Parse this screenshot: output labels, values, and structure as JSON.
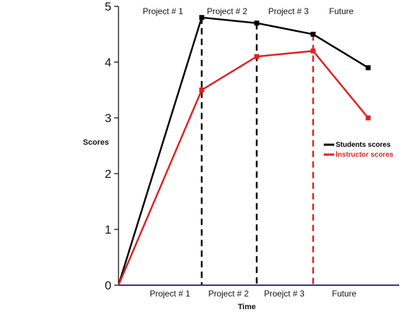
{
  "chart_data": {
    "type": "line",
    "xlabel": "Time",
    "ylabel": "Scores",
    "ylim": [
      0,
      5
    ],
    "y_ticks": [
      0,
      1,
      2,
      3,
      4,
      5
    ],
    "top_labels": [
      "Project # 1",
      "Project # 2",
      "Project # 3",
      "Future"
    ],
    "bottom_labels": [
      "Project # 1",
      "Project # 2",
      "Proejct # 3",
      "Future"
    ],
    "x": [
      0,
      1,
      2,
      3,
      4
    ],
    "series": [
      {
        "name": "Students scores",
        "color": "#000000",
        "values": [
          0,
          4.8,
          4.7,
          4.5,
          3.9
        ]
      },
      {
        "name": "İnstructor scores",
        "color": "#e02020",
        "values": [
          0,
          3.5,
          4.1,
          4.2,
          3.0
        ]
      }
    ],
    "dividers": [
      {
        "x": 1,
        "color": "#000000",
        "style": "dashed"
      },
      {
        "x": 2,
        "color": "#000000",
        "style": "dashed"
      },
      {
        "x": 3,
        "color": "#e02020",
        "style": "dashed"
      }
    ],
    "legend_position": "right",
    "grid": false,
    "x_axis_color": "#2e3192"
  }
}
